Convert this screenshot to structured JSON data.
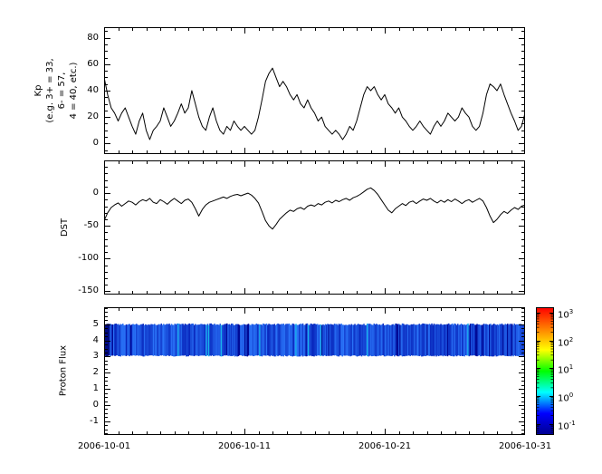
{
  "figure": {
    "background": "#ffffff",
    "frame_color": "#000000"
  },
  "x_axis": {
    "tick_labels": [
      "2006-10-01",
      "2006-10-11",
      "2006-10-21",
      "2006-10-31"
    ],
    "range_days": [
      0,
      30
    ],
    "major_ticks_days": [
      0,
      10,
      20,
      30
    ],
    "minor_tick_step_days": 1
  },
  "chart_data": [
    {
      "id": "kp",
      "type": "line",
      "ylabel": "Kp",
      "ylabel_note_lines": [
        "(e.g. 3+ = 33,",
        "6- = 57,",
        "4 = 40, etc.)"
      ],
      "line_color": "#000000",
      "ylim": [
        -8,
        88
      ],
      "yticks": [
        0,
        20,
        40,
        60,
        80
      ],
      "y_minor_step": 5,
      "x": {
        "start_label": "2006-10-01",
        "end_label": "2006-10-31",
        "days": 30,
        "points_per_day": 4
      },
      "values": [
        50,
        37,
        27,
        23,
        17,
        23,
        27,
        20,
        13,
        7,
        17,
        23,
        10,
        3,
        10,
        13,
        17,
        27,
        20,
        13,
        17,
        23,
        30,
        23,
        27,
        40,
        30,
        20,
        13,
        10,
        20,
        27,
        17,
        10,
        7,
        13,
        10,
        17,
        13,
        10,
        13,
        10,
        7,
        10,
        20,
        33,
        47,
        53,
        57,
        50,
        43,
        47,
        43,
        37,
        33,
        37,
        30,
        27,
        33,
        27,
        23,
        17,
        20,
        13,
        10,
        7,
        10,
        7,
        3,
        7,
        13,
        10,
        17,
        27,
        37,
        43,
        40,
        43,
        37,
        33,
        37,
        30,
        27,
        23,
        27,
        20,
        17,
        13,
        10,
        13,
        17,
        13,
        10,
        7,
        13,
        17,
        13,
        17,
        23,
        20,
        17,
        20,
        27,
        23,
        20,
        13,
        10,
        13,
        23,
        37,
        45,
        43,
        40,
        45,
        37,
        30,
        23,
        17,
        10,
        13,
        23
      ]
    },
    {
      "id": "dst",
      "type": "line",
      "ylabel": "DST",
      "line_color": "#000000",
      "ylim": [
        -155,
        50
      ],
      "yticks": [
        0,
        -50,
        -100,
        -150
      ],
      "y_minor_step": 10,
      "x": {
        "start_label": "2006-10-01",
        "end_label": "2006-10-31",
        "days": 30,
        "points_per_day": 4
      },
      "values": [
        -42,
        -30,
        -22,
        -18,
        -15,
        -20,
        -16,
        -12,
        -14,
        -18,
        -13,
        -10,
        -12,
        -8,
        -14,
        -16,
        -10,
        -13,
        -17,
        -12,
        -8,
        -12,
        -16,
        -11,
        -9,
        -14,
        -24,
        -35,
        -25,
        -18,
        -14,
        -12,
        -10,
        -8,
        -6,
        -8,
        -5,
        -3,
        -2,
        -4,
        -2,
        0,
        -3,
        -8,
        -15,
        -28,
        -42,
        -50,
        -55,
        -48,
        -40,
        -35,
        -30,
        -26,
        -28,
        -24,
        -22,
        -25,
        -20,
        -18,
        -20,
        -16,
        -18,
        -14,
        -12,
        -15,
        -11,
        -13,
        -10,
        -8,
        -11,
        -7,
        -5,
        -2,
        2,
        6,
        8,
        4,
        -2,
        -10,
        -18,
        -26,
        -30,
        -24,
        -20,
        -16,
        -19,
        -14,
        -12,
        -16,
        -12,
        -9,
        -11,
        -8,
        -12,
        -15,
        -11,
        -14,
        -10,
        -13,
        -9,
        -12,
        -16,
        -12,
        -10,
        -14,
        -11,
        -8,
        -12,
        -22,
        -35,
        -45,
        -40,
        -33,
        -28,
        -31,
        -26,
        -22,
        -25,
        -20,
        -18
      ]
    },
    {
      "id": "proton_flux",
      "type": "heatmap",
      "ylabel": "Proton Flux",
      "ylim": [
        -1.85,
        6.05
      ],
      "yticks": [
        5,
        4,
        3,
        2,
        1,
        0,
        -1
      ],
      "y_minor_step": 0.25,
      "x": {
        "start_label": "2006-10-01",
        "end_label": "2006-10-31",
        "days": 30
      },
      "band": {
        "y_from": 3.0,
        "y_to": 5.05,
        "base_color": "#1a35e0",
        "texture_seed": 7,
        "description": "continuous blue band of low proton flux (~0.1 to 1) spanning y=3 to y=5 across the full time range"
      },
      "colorbar": {
        "log_range": [
          -1.4,
          3.2
        ],
        "tick_base": "10",
        "tick_exponents": [
          3,
          2,
          1,
          0,
          -1
        ],
        "colors_bottom_to_top": [
          "#000090",
          "#0000ff",
          "#00ffff",
          "#00ff00",
          "#ffff00",
          "#ff8000",
          "#ff0000"
        ]
      }
    }
  ]
}
